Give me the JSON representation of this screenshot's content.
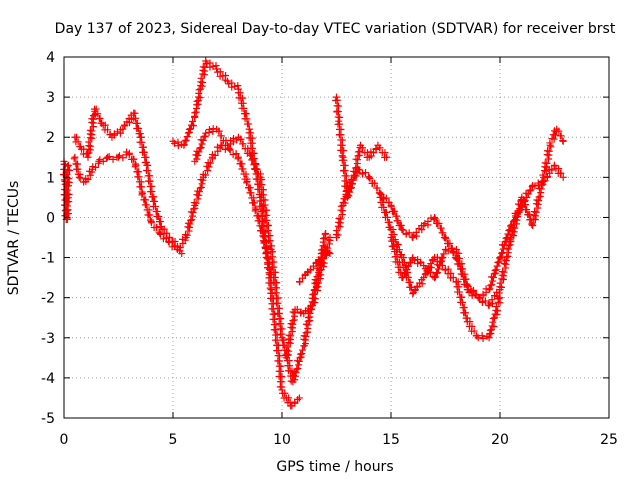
{
  "chart_data": {
    "type": "scatter",
    "title": "Day 137 of 2023, Sidereal Day-to-day VTEC variation (SDTVAR) for receiver brst",
    "xlabel": "GPS time / hours",
    "ylabel": "SDTVAR / TECUs",
    "xlim": [
      0,
      25
    ],
    "ylim": [
      -5,
      4
    ],
    "xticks": [
      0,
      5,
      10,
      15,
      20,
      25
    ],
    "yticks": [
      -5,
      -4,
      -3,
      -2,
      -1,
      0,
      1,
      2,
      3,
      4
    ],
    "xtick_labels": [
      "0",
      "5",
      "10",
      "15",
      "20",
      "25"
    ],
    "ytick_labels": [
      "-5",
      "-4",
      "-3",
      "-2",
      "-1",
      "0",
      "1",
      "2",
      "3",
      "4"
    ],
    "grid": true,
    "marker": "+",
    "color": "#ff0000",
    "series": [
      {
        "x": [
          0.0,
          0.05,
          0.1,
          0.15,
          0.2
        ],
        "y": [
          1.4,
          0.9,
          -0.05,
          -0.05,
          1.3
        ]
      },
      {
        "x": [
          0.5,
          0.7,
          1.0,
          1.3,
          1.6,
          2.0,
          2.5,
          3.0,
          3.3,
          3.6,
          4.0,
          4.4,
          4.8,
          5.2,
          5.6,
          6.0,
          6.4,
          6.8,
          7.2,
          7.6,
          8.0,
          8.4,
          8.8,
          9.2,
          9.5
        ],
        "y": [
          1.5,
          1.0,
          0.9,
          1.2,
          1.4,
          1.5,
          1.5,
          1.6,
          1.3,
          0.6,
          -0.1,
          -0.4,
          -0.6,
          -0.8,
          -0.5,
          0.3,
          1.0,
          1.5,
          1.8,
          1.7,
          1.5,
          0.9,
          0.2,
          -0.6,
          -1.5
        ]
      },
      {
        "x": [
          0.5,
          0.8,
          1.1,
          1.4,
          1.8,
          2.2,
          2.7,
          3.2,
          3.5,
          3.8,
          4.1,
          4.5,
          5.0,
          5.4
        ],
        "y": [
          2.0,
          1.7,
          1.5,
          2.7,
          2.3,
          2.0,
          2.2,
          2.6,
          2.0,
          1.3,
          0.4,
          -0.3,
          -0.6,
          -0.9
        ]
      },
      {
        "x": [
          5.0,
          5.5,
          6.0,
          6.5,
          7.0,
          7.5,
          8.0,
          8.5,
          9.0,
          9.5,
          10.0,
          10.4,
          10.8
        ],
        "y": [
          1.9,
          1.8,
          2.5,
          3.9,
          3.7,
          3.4,
          3.2,
          2.2,
          0.5,
          -1.8,
          -4.3,
          -4.7,
          -4.5
        ]
      },
      {
        "x": [
          6.0,
          6.5,
          7.0,
          7.5,
          8.0,
          8.5,
          9.0,
          9.5,
          10.0,
          10.5,
          11.0,
          11.5,
          12.0
        ],
        "y": [
          1.4,
          2.1,
          2.2,
          1.8,
          2.0,
          1.6,
          1.0,
          -0.8,
          -3.0,
          -4.1,
          -3.2,
          -1.8,
          -0.4
        ]
      },
      {
        "x": [
          10.2,
          10.6,
          11.0,
          11.4,
          11.8,
          12.2
        ],
        "y": [
          -3.5,
          -2.3,
          -2.4,
          -2.2,
          -1.3,
          -0.5
        ]
      },
      {
        "x": [
          10.8,
          11.3,
          11.8,
          12.2
        ],
        "y": [
          -1.6,
          -1.3,
          -1.0,
          -0.9
        ]
      },
      {
        "x": [
          12.5,
          12.6,
          12.8,
          13.0,
          13.3,
          13.6,
          14.0,
          14.4,
          14.8
        ],
        "y": [
          3.0,
          2.4,
          1.5,
          0.5,
          1.0,
          1.8,
          1.5,
          1.8,
          1.5
        ]
      },
      {
        "x": [
          12.5,
          12.8,
          13.1,
          13.5,
          14.0,
          14.5,
          15.0,
          15.5,
          16.0,
          16.5,
          17.0,
          17.5,
          18.0,
          18.5,
          19.0,
          19.5,
          20.0,
          20.5
        ],
        "y": [
          -0.5,
          0.3,
          0.8,
          1.2,
          1.0,
          0.6,
          0.3,
          -0.3,
          -0.5,
          -0.2,
          0.0,
          -0.5,
          -1.0,
          -1.7,
          -2.0,
          -2.2,
          -1.8,
          -0.5
        ]
      },
      {
        "x": [
          14.5,
          15.0,
          15.5,
          16.0,
          16.5,
          17.0,
          17.5,
          18.0,
          18.5,
          19.0,
          19.5,
          20.0
        ],
        "y": [
          0.5,
          -0.3,
          -1.0,
          -1.9,
          -1.5,
          -1.0,
          -1.3,
          -1.6,
          -2.6,
          -3.0,
          -3.0,
          -2.0
        ]
      },
      {
        "x": [
          15.0,
          15.5,
          16.0,
          16.5,
          17.0,
          17.5,
          18.0,
          18.5,
          19.0,
          19.5,
          20.0,
          20.5,
          21.0,
          21.5,
          22.0,
          22.5,
          22.9
        ],
        "y": [
          -0.5,
          -1.5,
          -1.0,
          -1.2,
          -1.5,
          -0.8,
          -0.8,
          -1.8,
          -2.0,
          -1.8,
          -1.0,
          -0.2,
          0.3,
          0.8,
          0.9,
          1.3,
          1.0
        ]
      },
      {
        "x": [
          20.5,
          21.0,
          21.5,
          22.0,
          22.3,
          22.6,
          22.9
        ],
        "y": [
          -0.6,
          0.5,
          -0.2,
          1.0,
          1.8,
          2.2,
          1.9
        ]
      }
    ]
  }
}
